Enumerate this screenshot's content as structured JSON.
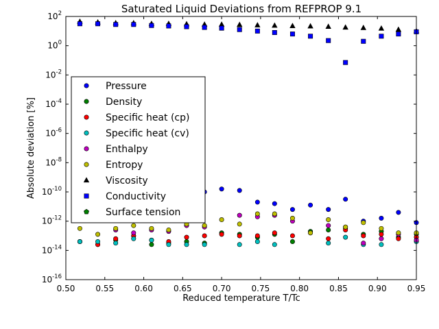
{
  "chart_data": {
    "type": "scatter",
    "title": "Saturated Liquid Deviations from REFPROP 9.1",
    "xlabel": "Reduced temperature T/Tc",
    "ylabel": "Absolute deviation [%]",
    "xlim": [
      0.5,
      0.95
    ],
    "ylim_log10": [
      -16,
      2
    ],
    "yscale": "log",
    "grid": false,
    "legend_placement": "center-left",
    "x_ticks": [
      {
        "value": 0.5,
        "label": "0.50"
      },
      {
        "value": 0.55,
        "label": "0.55"
      },
      {
        "value": 0.6,
        "label": "0.60"
      },
      {
        "value": 0.65,
        "label": "0.65"
      },
      {
        "value": 0.7,
        "label": "0.70"
      },
      {
        "value": 0.75,
        "label": "0.75"
      },
      {
        "value": 0.8,
        "label": "0.80"
      },
      {
        "value": 0.85,
        "label": "0.85"
      },
      {
        "value": 0.9,
        "label": "0.90"
      },
      {
        "value": 0.95,
        "label": "0.95"
      }
    ],
    "y_ticks": [
      {
        "exp": 2,
        "base": "10",
        "sup": "2"
      },
      {
        "exp": 0,
        "base": "10",
        "sup": "0"
      },
      {
        "exp": -2,
        "base": "10",
        "sup": "-2"
      },
      {
        "exp": -4,
        "base": "10",
        "sup": "-4"
      },
      {
        "exp": -6,
        "base": "10",
        "sup": "-6"
      },
      {
        "exp": -8,
        "base": "10",
        "sup": "-8"
      },
      {
        "exp": -10,
        "base": "10",
        "sup": "-10"
      },
      {
        "exp": -12,
        "base": "10",
        "sup": "-12"
      },
      {
        "exp": -14,
        "base": "10",
        "sup": "-14"
      },
      {
        "exp": -16,
        "base": "10",
        "sup": "-16"
      }
    ],
    "x": [
      0.518,
      0.541,
      0.564,
      0.587,
      0.61,
      0.632,
      0.655,
      0.678,
      0.7,
      0.723,
      0.746,
      0.768,
      0.791,
      0.814,
      0.837,
      0.859,
      0.882,
      0.905,
      0.927,
      0.95
    ],
    "series": [
      {
        "name": "Pressure",
        "marker": "circle",
        "color": "#0000ff",
        "log10_values": [
          null,
          null,
          null,
          null,
          null,
          null,
          null,
          -10.0,
          -9.8,
          -9.9,
          -10.7,
          -10.8,
          -11.2,
          -10.9,
          -11.2,
          -10.5,
          -12.0,
          -11.8,
          -11.4,
          -12.1
        ]
      },
      {
        "name": "Density",
        "marker": "circle",
        "color": "#007f00",
        "log10_values": [
          -13.4,
          -13.6,
          -13.3,
          -13.0,
          -13.6,
          -13.5,
          -13.4,
          -13.5,
          -12.8,
          -12.9,
          -13.1,
          -12.9,
          -13.4,
          -12.7,
          -12.6,
          -12.5,
          -12.9,
          -12.7,
          -13.1,
          -12.9
        ]
      },
      {
        "name": "Specific heat (cp)",
        "marker": "circle",
        "color": "#ff0000",
        "log10_values": [
          -13.4,
          -13.6,
          -13.2,
          -13.0,
          -13.3,
          -13.4,
          -13.1,
          -13.0,
          -12.9,
          -13.0,
          -13.0,
          -12.8,
          -13.0,
          -12.8,
          -13.2,
          -12.6,
          -13.0,
          -12.9,
          -13.2,
          -13.1
        ]
      },
      {
        "name": "Specific heat (cv)",
        "marker": "circle",
        "color": "#00bfbf",
        "log10_values": [
          -13.4,
          -13.4,
          -13.5,
          -13.2,
          -13.3,
          -13.6,
          -13.6,
          -13.6,
          null,
          -13.6,
          -13.4,
          -13.6,
          null,
          null,
          -13.5,
          -13.1,
          -13.6,
          -13.6,
          null,
          -13.4
        ]
      },
      {
        "name": "Enthalpy",
        "marker": "circle",
        "color": "#bf00bf",
        "log10_values": [
          null,
          null,
          -12.6,
          -12.8,
          -12.6,
          -12.7,
          -12.3,
          -12.4,
          null,
          -11.6,
          -11.7,
          -11.6,
          -12.0,
          null,
          -12.3,
          -12.4,
          -13.5,
          -13.2,
          -12.9,
          -13.3
        ]
      },
      {
        "name": "Entropy",
        "marker": "circle",
        "color": "#bfbf00",
        "log10_values": [
          -12.5,
          -12.9,
          -12.5,
          -12.3,
          -12.5,
          -12.6,
          -12.2,
          -12.3,
          -11.9,
          -12.2,
          -11.5,
          -11.5,
          -11.8,
          -12.8,
          -11.9,
          -12.4,
          -12.1,
          -12.5,
          -12.8,
          -12.8
        ]
      },
      {
        "name": "Viscosity",
        "marker": "triangle",
        "color": "#000000",
        "log10_values": [
          1.65,
          1.6,
          1.55,
          1.55,
          1.5,
          1.5,
          1.48,
          1.45,
          1.45,
          1.43,
          1.4,
          1.38,
          1.35,
          1.33,
          1.3,
          1.25,
          1.22,
          1.18,
          1.1,
          1.0
        ]
      },
      {
        "name": "Conductivity",
        "marker": "square",
        "color": "#0000ff",
        "log10_values": [
          1.5,
          1.5,
          1.45,
          1.45,
          1.38,
          1.35,
          1.3,
          1.25,
          1.2,
          1.1,
          1.0,
          0.9,
          0.8,
          0.65,
          0.35,
          -1.15,
          0.3,
          0.65,
          0.8,
          0.95
        ]
      },
      {
        "name": "Surface tension",
        "marker": "pentagon",
        "color": "#007f00",
        "log10_values": []
      }
    ]
  }
}
